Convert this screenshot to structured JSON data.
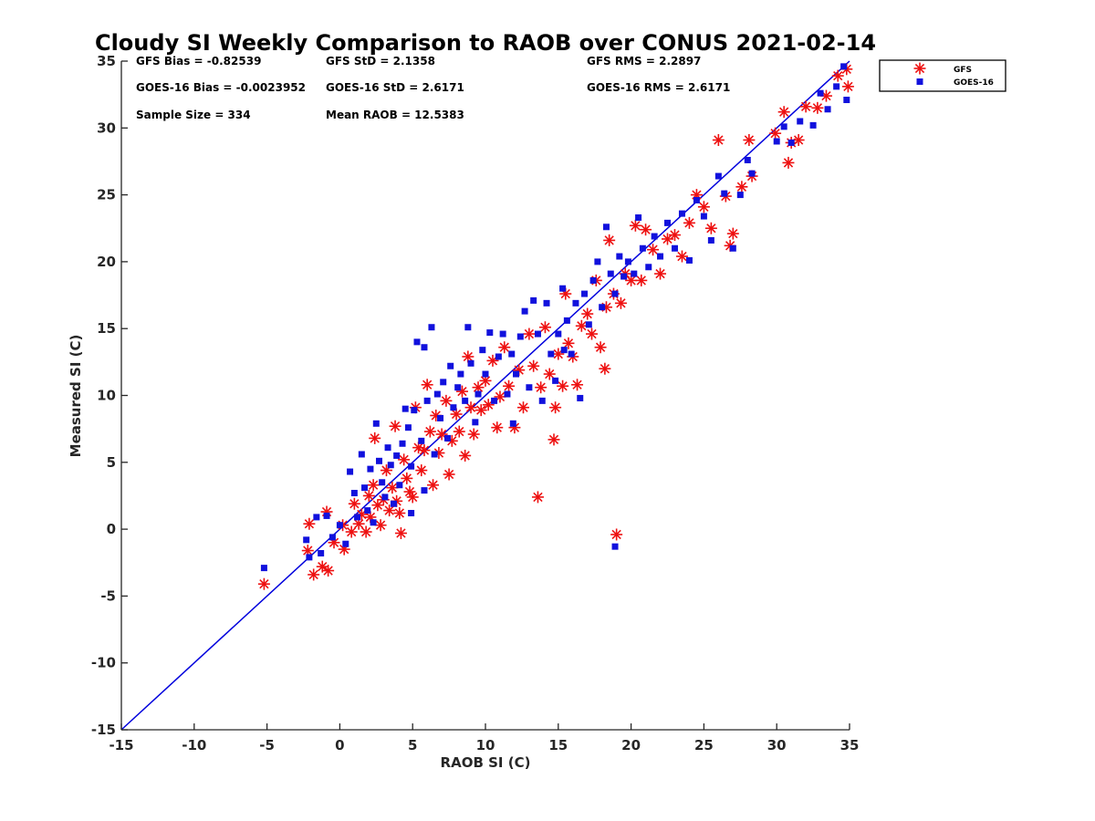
{
  "chart_data": {
    "type": "scatter",
    "title": "Cloudy SI Weekly Comparison to RAOB over CONUS 2021-02-14",
    "xlabel": "RAOB SI (C)",
    "ylabel": "Measured SI (C)",
    "xlim": [
      -15,
      35
    ],
    "ylim": [
      -15,
      35
    ],
    "xticks": [
      "-15",
      "-10",
      "-5",
      "0",
      "5",
      "10",
      "15",
      "20",
      "25",
      "30",
      "35"
    ],
    "yticks": [
      "35",
      "30",
      "25",
      "20",
      "15",
      "10",
      "5",
      "0",
      "-5",
      "-10",
      "-15"
    ],
    "grid": false,
    "legend_position": "outside top-right",
    "reference_line": {
      "from": [
        -15,
        -15
      ],
      "to": [
        35,
        35
      ],
      "color": "#0000dd"
    },
    "stats": [
      [
        "GFS Bias = -0.82539",
        "GFS StD = 2.1358",
        "GFS RMS = 2.2897"
      ],
      [
        "GOES-16 Bias = -0.0023952",
        "GOES-16 StD = 2.6171",
        "GOES-16 RMS = 2.6171"
      ],
      [
        "Sample Size = 334",
        "Mean RAOB = 12.5383",
        ""
      ]
    ],
    "series": [
      {
        "name": "GFS",
        "marker": "asterisk",
        "color": "#ee1111",
        "points": [
          [
            -5.2,
            -4.1
          ],
          [
            -2.2,
            -1.6
          ],
          [
            -2.1,
            0.4
          ],
          [
            -1.8,
            -3.4
          ],
          [
            -1.2,
            -2.8
          ],
          [
            -0.9,
            1.3
          ],
          [
            -0.8,
            -3.1
          ],
          [
            -0.4,
            -1.0
          ],
          [
            0.2,
            0.3
          ],
          [
            0.3,
            -1.5
          ],
          [
            0.8,
            -0.2
          ],
          [
            1.0,
            1.9
          ],
          [
            1.3,
            0.4
          ],
          [
            1.5,
            1.1
          ],
          [
            1.8,
            -0.2
          ],
          [
            2.0,
            2.5
          ],
          [
            2.1,
            0.9
          ],
          [
            2.3,
            3.3
          ],
          [
            2.4,
            6.8
          ],
          [
            2.6,
            1.8
          ],
          [
            2.8,
            0.3
          ],
          [
            3.0,
            2.2
          ],
          [
            3.2,
            4.4
          ],
          [
            3.4,
            1.4
          ],
          [
            3.6,
            3.1
          ],
          [
            3.8,
            7.7
          ],
          [
            3.9,
            2.1
          ],
          [
            4.1,
            1.2
          ],
          [
            4.2,
            -0.3
          ],
          [
            4.4,
            5.2
          ],
          [
            4.6,
            3.8
          ],
          [
            4.8,
            2.8
          ],
          [
            5.0,
            2.4
          ],
          [
            5.2,
            9.1
          ],
          [
            5.4,
            6.1
          ],
          [
            5.6,
            4.4
          ],
          [
            5.8,
            5.9
          ],
          [
            6.0,
            10.8
          ],
          [
            6.2,
            7.3
          ],
          [
            6.4,
            3.3
          ],
          [
            6.6,
            8.5
          ],
          [
            6.8,
            5.7
          ],
          [
            7.0,
            7.1
          ],
          [
            7.3,
            9.6
          ],
          [
            7.5,
            4.1
          ],
          [
            7.7,
            6.6
          ],
          [
            8.0,
            8.6
          ],
          [
            8.2,
            7.3
          ],
          [
            8.4,
            10.3
          ],
          [
            8.6,
            5.5
          ],
          [
            8.8,
            12.9
          ],
          [
            9.0,
            9.1
          ],
          [
            9.2,
            7.1
          ],
          [
            9.5,
            10.6
          ],
          [
            9.7,
            8.9
          ],
          [
            10.0,
            11.1
          ],
          [
            10.2,
            9.3
          ],
          [
            10.5,
            12.6
          ],
          [
            10.8,
            7.6
          ],
          [
            11.0,
            9.9
          ],
          [
            11.3,
            13.6
          ],
          [
            11.6,
            10.7
          ],
          [
            12.0,
            7.6
          ],
          [
            12.3,
            11.9
          ],
          [
            12.6,
            9.1
          ],
          [
            13.0,
            14.6
          ],
          [
            13.3,
            12.2
          ],
          [
            13.6,
            2.4
          ],
          [
            13.8,
            10.6
          ],
          [
            14.1,
            15.1
          ],
          [
            14.4,
            11.6
          ],
          [
            14.7,
            6.7
          ],
          [
            14.8,
            9.1
          ],
          [
            15.0,
            13.1
          ],
          [
            15.3,
            10.7
          ],
          [
            15.5,
            17.6
          ],
          [
            15.7,
            13.9
          ],
          [
            16.0,
            12.9
          ],
          [
            16.3,
            10.8
          ],
          [
            16.6,
            15.2
          ],
          [
            17.0,
            16.1
          ],
          [
            17.3,
            14.6
          ],
          [
            17.6,
            18.6
          ],
          [
            17.9,
            13.6
          ],
          [
            18.2,
            12.0
          ],
          [
            18.3,
            16.6
          ],
          [
            18.5,
            21.6
          ],
          [
            18.8,
            17.6
          ],
          [
            19.0,
            -0.4
          ],
          [
            19.3,
            16.9
          ],
          [
            19.6,
            19.1
          ],
          [
            20.0,
            18.6
          ],
          [
            20.3,
            22.7
          ],
          [
            20.7,
            18.6
          ],
          [
            21.0,
            22.4
          ],
          [
            21.5,
            20.9
          ],
          [
            22.0,
            19.1
          ],
          [
            22.5,
            21.7
          ],
          [
            23.0,
            22.0
          ],
          [
            23.5,
            20.4
          ],
          [
            24.0,
            22.9
          ],
          [
            24.5,
            25.0
          ],
          [
            25.0,
            24.1
          ],
          [
            25.5,
            22.5
          ],
          [
            26.0,
            29.1
          ],
          [
            26.5,
            24.9
          ],
          [
            26.8,
            21.2
          ],
          [
            27.0,
            22.1
          ],
          [
            27.6,
            25.6
          ],
          [
            28.1,
            29.1
          ],
          [
            28.3,
            26.4
          ],
          [
            29.9,
            29.6
          ],
          [
            30.5,
            31.2
          ],
          [
            30.8,
            27.4
          ],
          [
            31.0,
            28.9
          ],
          [
            31.5,
            29.1
          ],
          [
            32.0,
            31.6
          ],
          [
            32.8,
            31.5
          ],
          [
            33.4,
            32.4
          ],
          [
            34.2,
            33.9
          ],
          [
            34.8,
            34.4
          ],
          [
            34.9,
            33.1
          ]
        ]
      },
      {
        "name": "GOES-16",
        "marker": "square",
        "color": "#1111dd",
        "points": [
          [
            -5.2,
            -2.9
          ],
          [
            -2.3,
            -0.8
          ],
          [
            -2.1,
            -2.1
          ],
          [
            -1.6,
            0.9
          ],
          [
            -1.3,
            -1.8
          ],
          [
            -0.9,
            1.0
          ],
          [
            -0.5,
            -0.6
          ],
          [
            0.0,
            0.3
          ],
          [
            0.4,
            -1.1
          ],
          [
            0.7,
            4.3
          ],
          [
            1.0,
            2.7
          ],
          [
            1.2,
            0.9
          ],
          [
            1.5,
            5.6
          ],
          [
            1.7,
            3.1
          ],
          [
            1.9,
            1.4
          ],
          [
            2.1,
            4.5
          ],
          [
            2.3,
            0.5
          ],
          [
            2.5,
            7.9
          ],
          [
            2.7,
            5.1
          ],
          [
            2.9,
            3.5
          ],
          [
            3.1,
            2.4
          ],
          [
            3.3,
            6.1
          ],
          [
            3.5,
            4.8
          ],
          [
            3.7,
            1.9
          ],
          [
            3.9,
            5.5
          ],
          [
            4.1,
            3.3
          ],
          [
            4.3,
            6.4
          ],
          [
            4.5,
            9.0
          ],
          [
            4.7,
            7.6
          ],
          [
            4.9,
            4.7
          ],
          [
            5.1,
            8.9
          ],
          [
            5.3,
            14.0
          ],
          [
            5.6,
            6.6
          ],
          [
            5.8,
            13.6
          ],
          [
            6.0,
            9.6
          ],
          [
            6.3,
            15.1
          ],
          [
            6.5,
            5.6
          ],
          [
            6.7,
            10.1
          ],
          [
            6.9,
            8.3
          ],
          [
            7.1,
            11.0
          ],
          [
            7.4,
            6.8
          ],
          [
            7.6,
            12.2
          ],
          [
            7.8,
            9.1
          ],
          [
            8.1,
            10.6
          ],
          [
            8.3,
            11.6
          ],
          [
            8.6,
            9.6
          ],
          [
            8.8,
            15.1
          ],
          [
            9.0,
            12.4
          ],
          [
            9.3,
            8.0
          ],
          [
            9.5,
            10.1
          ],
          [
            9.8,
            13.4
          ],
          [
            10.0,
            11.6
          ],
          [
            10.3,
            14.7
          ],
          [
            10.6,
            9.6
          ],
          [
            10.9,
            12.9
          ],
          [
            11.2,
            14.6
          ],
          [
            11.5,
            10.1
          ],
          [
            11.8,
            13.1
          ],
          [
            12.1,
            11.6
          ],
          [
            12.4,
            14.4
          ],
          [
            12.7,
            16.3
          ],
          [
            13.0,
            10.6
          ],
          [
            13.3,
            17.1
          ],
          [
            13.6,
            14.6
          ],
          [
            13.9,
            9.6
          ],
          [
            14.2,
            16.9
          ],
          [
            14.5,
            13.1
          ],
          [
            14.8,
            11.1
          ],
          [
            15.0,
            14.6
          ],
          [
            15.3,
            18.0
          ],
          [
            15.6,
            15.6
          ],
          [
            15.9,
            13.1
          ],
          [
            16.2,
            16.9
          ],
          [
            16.5,
            9.8
          ],
          [
            16.8,
            17.6
          ],
          [
            17.1,
            15.3
          ],
          [
            17.4,
            18.6
          ],
          [
            17.7,
            20.0
          ],
          [
            18.0,
            16.6
          ],
          [
            18.3,
            22.6
          ],
          [
            18.6,
            19.1
          ],
          [
            18.9,
            17.6
          ],
          [
            19.2,
            20.4
          ],
          [
            19.5,
            18.9
          ],
          [
            19.8,
            20.0
          ],
          [
            20.2,
            19.1
          ],
          [
            20.5,
            23.3
          ],
          [
            20.8,
            21.0
          ],
          [
            21.2,
            19.6
          ],
          [
            21.6,
            21.9
          ],
          [
            22.0,
            20.4
          ],
          [
            22.5,
            22.9
          ],
          [
            23.0,
            21.0
          ],
          [
            23.5,
            23.6
          ],
          [
            24.0,
            20.1
          ],
          [
            24.5,
            24.6
          ],
          [
            25.0,
            23.4
          ],
          [
            25.5,
            21.6
          ],
          [
            26.0,
            26.4
          ],
          [
            26.4,
            25.1
          ],
          [
            27.0,
            21.0
          ],
          [
            27.5,
            25.0
          ],
          [
            28.0,
            27.6
          ],
          [
            28.3,
            26.6
          ],
          [
            30.0,
            29.0
          ],
          [
            30.5,
            30.1
          ],
          [
            31.0,
            28.9
          ],
          [
            31.6,
            30.5
          ],
          [
            32.5,
            30.2
          ],
          [
            33.0,
            32.6
          ],
          [
            33.5,
            31.4
          ],
          [
            34.1,
            33.1
          ],
          [
            34.6,
            34.6
          ],
          [
            34.8,
            32.1
          ],
          [
            18.9,
            -1.3
          ],
          [
            4.9,
            1.2
          ],
          [
            15.4,
            13.4
          ],
          [
            11.9,
            7.9
          ],
          [
            5.8,
            2.9
          ]
        ]
      }
    ]
  }
}
